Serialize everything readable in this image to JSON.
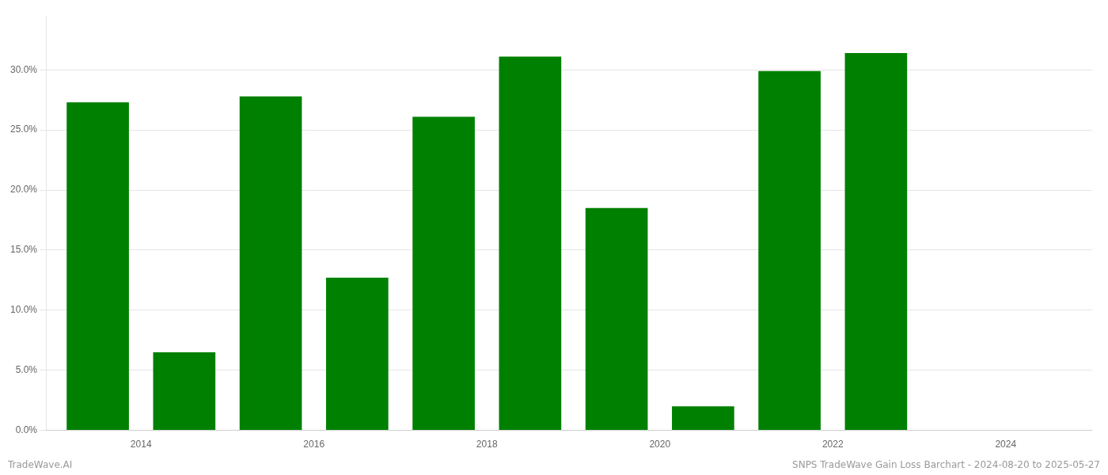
{
  "chart_data": {
    "type": "bar",
    "x": [
      2013,
      2014,
      2015,
      2016,
      2017,
      2018,
      2019,
      2020,
      2021,
      2022
    ],
    "values": [
      0.273,
      0.065,
      0.278,
      0.127,
      0.261,
      0.311,
      0.185,
      0.02,
      0.299,
      0.314
    ],
    "color": "#008000",
    "xlim": [
      2012.4,
      2024.5
    ],
    "xticks": [
      {
        "value": 2013.5,
        "label": "2014"
      },
      {
        "value": 2015.5,
        "label": "2016"
      },
      {
        "value": 2017.5,
        "label": "2018"
      },
      {
        "value": 2019.5,
        "label": "2020"
      },
      {
        "value": 2021.5,
        "label": "2022"
      },
      {
        "value": 2023.5,
        "label": "2024"
      }
    ],
    "ylim": [
      0.0,
      0.345
    ],
    "yticks": [
      {
        "value": 0.0,
        "label": "0.0%"
      },
      {
        "value": 0.05,
        "label": "5.0%"
      },
      {
        "value": 0.1,
        "label": "10.0%"
      },
      {
        "value": 0.15,
        "label": "15.0%"
      },
      {
        "value": 0.2,
        "label": "20.0%"
      },
      {
        "value": 0.25,
        "label": "25.0%"
      },
      {
        "value": 0.3,
        "label": "30.0%"
      }
    ],
    "grid": true,
    "annotations": [
      "TradeWave.AI",
      "SNPS TradeWave Gain Loss Barchart - 2024-08-20 to 2025-05-27"
    ]
  }
}
